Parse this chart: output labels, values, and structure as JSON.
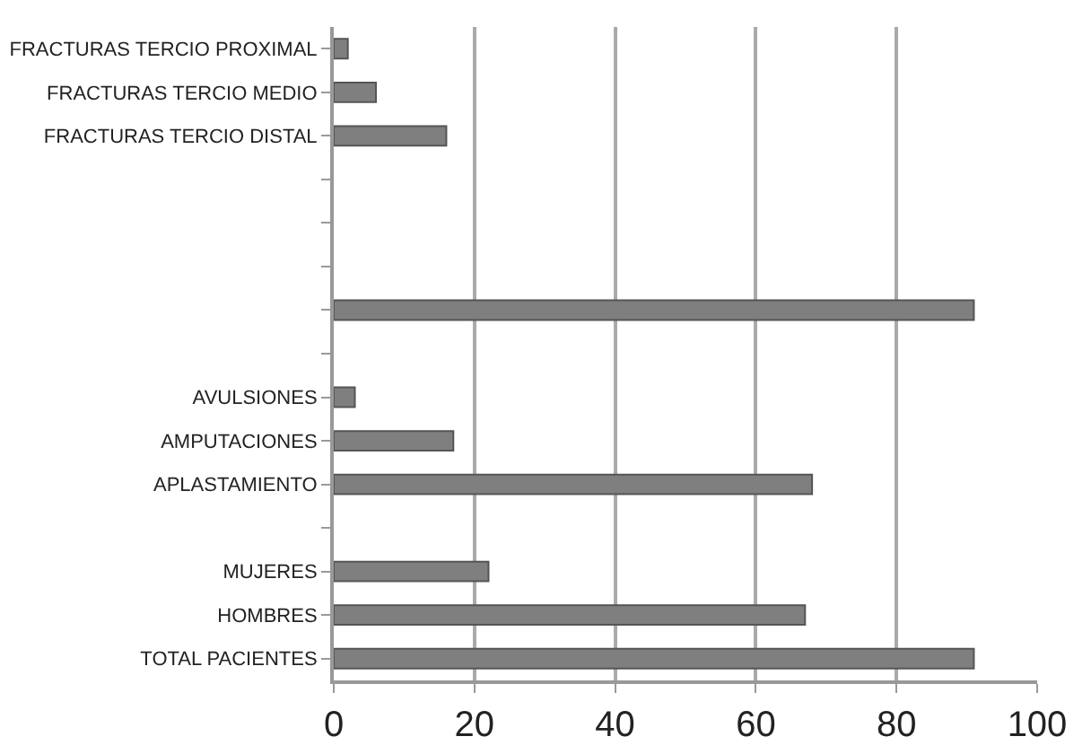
{
  "chart_data": {
    "type": "bar",
    "orientation": "horizontal",
    "categories": [
      "FRACTURAS TERCIO PROXIMAL",
      "FRACTURAS TERCIO MEDIO",
      "FRACTURAS TERCIO DISTAL",
      null,
      null,
      null,
      null,
      null,
      "AVULSIONES",
      "AMPUTACIONES",
      "APLASTAMIENTO",
      null,
      "MUJERES",
      "HOMBRES",
      "TOTAL PACIENTES"
    ],
    "values": [
      2,
      6,
      16,
      null,
      null,
      null,
      91,
      null,
      3,
      17,
      68,
      null,
      22,
      67,
      91
    ],
    "color": "#7f7f7f",
    "xlim": [
      0,
      100
    ],
    "xticks": [
      0,
      20,
      40,
      60,
      80,
      100
    ],
    "grid": "x",
    "legend": false
  }
}
